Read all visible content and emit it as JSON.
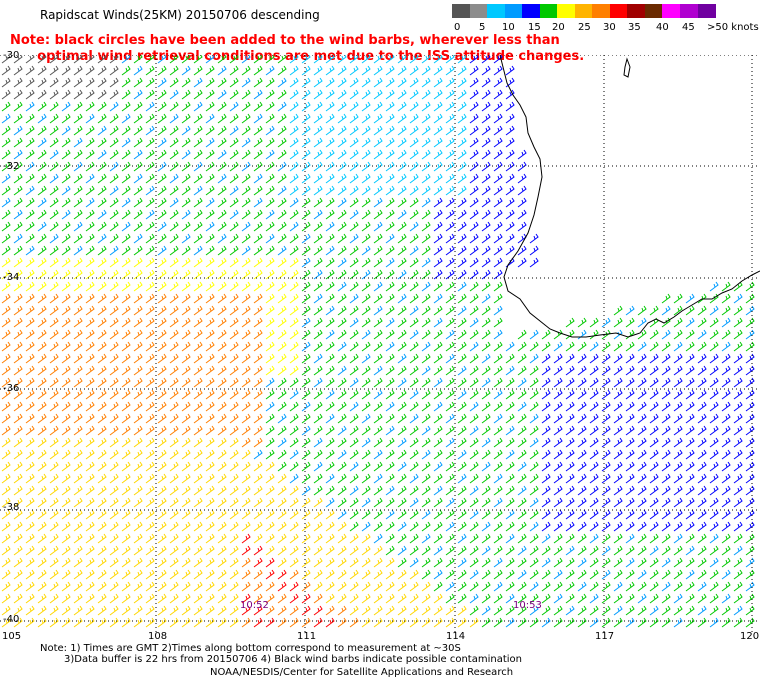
{
  "title": "Rapidscat Winds(25KM) 20150706 descending",
  "note_line1": "Note: black circles have been added to the wind barbs, wherever less than",
  "note_line2": "optimal wind retrieval conditions are met due to the ISS attitude changes.",
  "legend": {
    "labels": [
      "0",
      "5",
      "10",
      "15",
      "20",
      "25",
      "30",
      "35",
      "40",
      "45",
      ">50 knots"
    ],
    "colors": [
      "#555555",
      "#8c8c8c",
      "#00c8ff",
      "#009bff",
      "#0000ff",
      "#00c800",
      "#ffff00",
      "#ffb400",
      "#ff7f00",
      "#ff0000",
      "#a00000",
      "#6a2a00",
      "#ff00ff",
      "#b000d0",
      "#7000a0"
    ]
  },
  "map": {
    "lat_labels": [
      "-30",
      "-32",
      "-34",
      "-36",
      "-38",
      "-40"
    ],
    "lon_labels": [
      "105",
      "108",
      "111",
      "114",
      "117",
      "120"
    ],
    "time_labels": [
      "10:52",
      "10:53"
    ]
  },
  "footer_line1": "Note: 1) Times are GMT 2)Times along bottom correspond to measurement at ~30S",
  "footer_line2": "3)Data buffer is 22 hrs from 20150706 4) Black wind barbs indicate possible contamination",
  "credit": "NOAA/NESDIS/Center for Satellite Applications and Research"
}
